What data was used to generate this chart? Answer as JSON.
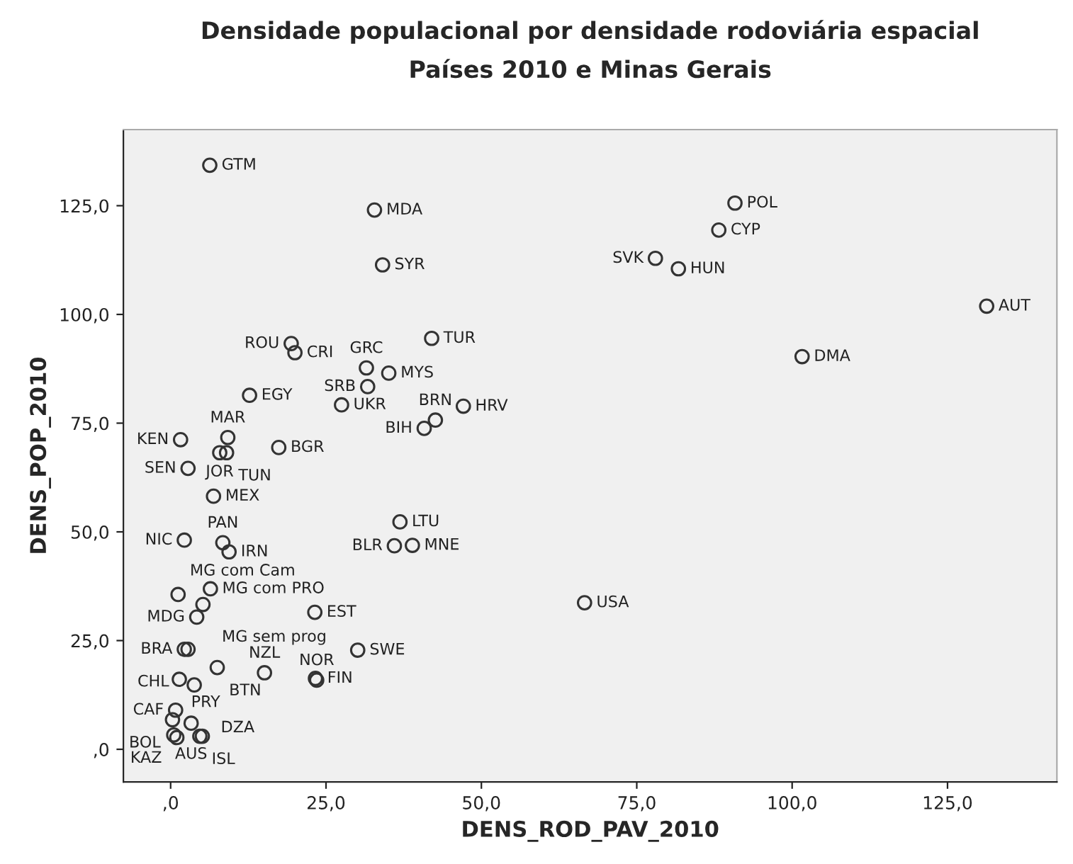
{
  "chart_data": {
    "type": "scatter",
    "title": "Densidade populacional por densidade rodoviária espacial",
    "subtitle": "Países 2010 e Minas Gerais",
    "xlabel": "DENS_ROD_PAV_2010",
    "ylabel": "DENS_POP_2010",
    "series": [
      {
        "color": "#333333",
        "x": [
          6.3,
          32.8,
          34.1,
          42.0,
          19.4,
          20.0,
          31.5,
          35.1,
          31.7,
          12.7,
          27.5,
          47.1,
          42.6,
          40.8,
          1.6,
          9.2,
          17.4,
          7.9,
          9.0,
          2.8,
          6.9,
          36.9,
          2.2,
          8.4,
          9.4,
          36.0,
          38.9,
          1.2,
          6.4,
          5.2,
          4.2,
          2.2,
          2.8,
          23.2,
          30.1,
          7.5,
          15.1,
          23.3,
          23.5,
          1.4,
          3.8,
          0.8,
          0.3,
          3.3,
          0.5,
          1.0,
          4.7,
          5.1,
          90.8,
          88.2,
          78.0,
          81.7,
          131.3,
          101.6,
          66.6
        ],
        "values": [
          134.3,
          124.0,
          111.4,
          94.5,
          93.3,
          91.2,
          87.7,
          86.5,
          83.4,
          81.4,
          79.2,
          78.9,
          75.7,
          73.8,
          71.2,
          71.7,
          69.4,
          68.2,
          68.2,
          64.6,
          58.2,
          52.3,
          48.1,
          47.5,
          45.4,
          46.8,
          46.9,
          35.6,
          36.9,
          33.3,
          30.4,
          23.0,
          23.0,
          31.5,
          22.8,
          18.8,
          17.6,
          16.3,
          15.9,
          16.1,
          14.8,
          9.0,
          6.8,
          6.0,
          3.3,
          2.7,
          3.0,
          3.0,
          125.6,
          119.4,
          112.9,
          110.5,
          101.9,
          90.3,
          33.7
        ]
      }
    ],
    "annotations": [
      {
        "text": "GTM",
        "x": 6.3,
        "y": 134.3
      },
      {
        "text": "MDA",
        "x": 32.8,
        "y": 124.0
      },
      {
        "text": "SYR",
        "x": 34.1,
        "y": 111.4
      },
      {
        "text": "TUR",
        "x": 42.0,
        "y": 94.5
      },
      {
        "text": "ROU",
        "x": 19.4,
        "y": 93.3
      },
      {
        "text": "CRI",
        "x": 20.0,
        "y": 91.2
      },
      {
        "text": "GRC",
        "x": 31.5,
        "y": 87.7
      },
      {
        "text": "MYS",
        "x": 35.1,
        "y": 86.5
      },
      {
        "text": "SRB",
        "x": 31.7,
        "y": 83.4
      },
      {
        "text": "EGY",
        "x": 12.7,
        "y": 81.4
      },
      {
        "text": "UKR",
        "x": 27.5,
        "y": 79.2
      },
      {
        "text": "HRV",
        "x": 47.1,
        "y": 78.9
      },
      {
        "text": "BRN",
        "x": 42.6,
        "y": 75.7
      },
      {
        "text": "BIH",
        "x": 40.8,
        "y": 73.8
      },
      {
        "text": "KEN",
        "x": 1.6,
        "y": 71.2
      },
      {
        "text": "MAR",
        "x": 9.2,
        "y": 71.7
      },
      {
        "text": "BGR",
        "x": 17.4,
        "y": 69.4
      },
      {
        "text": "JOR",
        "x": 7.9,
        "y": 68.2
      },
      {
        "text": "TUN",
        "x": 9.0,
        "y": 68.2
      },
      {
        "text": "SEN",
        "x": 2.8,
        "y": 64.6
      },
      {
        "text": "MEX",
        "x": 6.9,
        "y": 58.2
      },
      {
        "text": "LTU",
        "x": 36.9,
        "y": 52.3
      },
      {
        "text": "NIC",
        "x": 2.2,
        "y": 48.1
      },
      {
        "text": "PAN",
        "x": 8.4,
        "y": 47.5
      },
      {
        "text": "IRN",
        "x": 9.4,
        "y": 45.4
      },
      {
        "text": "BLR",
        "x": 36.0,
        "y": 46.8
      },
      {
        "text": "MNE",
        "x": 38.9,
        "y": 46.9
      },
      {
        "text": "MG com Cam",
        "x": 1.2,
        "y": 35.6
      },
      {
        "text": "MG com PRO",
        "x": 6.4,
        "y": 36.9
      },
      {
        "text": "MG sem prog",
        "x": 5.2,
        "y": 33.3
      },
      {
        "text": "MDG",
        "x": 4.2,
        "y": 30.4
      },
      {
        "text": "BRA",
        "x": 2.2,
        "y": 23.0
      },
      {
        "text": "CHL",
        "x": 2.8,
        "y": 23.0
      },
      {
        "text": "EST",
        "x": 23.2,
        "y": 31.5
      },
      {
        "text": "SWE",
        "x": 30.1,
        "y": 22.8
      },
      {
        "text": "BTN",
        "x": 7.5,
        "y": 18.8
      },
      {
        "text": "NZL",
        "x": 15.1,
        "y": 17.6
      },
      {
        "text": "FIN",
        "x": 23.3,
        "y": 16.3
      },
      {
        "text": "NOR",
        "x": 23.5,
        "y": 15.9
      },
      {
        "text": "PRY",
        "x": 1.4,
        "y": 16.1
      },
      {
        "text": "DZA",
        "x": 3.8,
        "y": 14.8
      },
      {
        "text": "CAF",
        "x": 0.8,
        "y": 9.0
      },
      {
        "text": "BOL",
        "x": 0.3,
        "y": 6.8
      },
      {
        "text": "AUS",
        "x": 3.3,
        "y": 6.0
      },
      {
        "text": "KAZ",
        "x": 0.5,
        "y": 3.3
      },
      {
        "text": "ISL",
        "x": 4.7,
        "y": 3.0
      },
      {
        "text": "POL",
        "x": 90.8,
        "y": 125.6
      },
      {
        "text": "CYP",
        "x": 88.2,
        "y": 119.4
      },
      {
        "text": "SVK",
        "x": 78.0,
        "y": 112.9
      },
      {
        "text": "HUN",
        "x": 81.7,
        "y": 110.5
      },
      {
        "text": "AUT",
        "x": 131.3,
        "y": 101.9
      },
      {
        "text": "DMA",
        "x": 101.6,
        "y": 90.3
      },
      {
        "text": "USA",
        "x": 66.6,
        "y": 33.7
      }
    ],
    "xlim": [
      -7.6,
      142.6
    ],
    "ylim": [
      -7.5,
      142.5
    ],
    "xticks": [
      {
        "value": 0,
        "label": ",0"
      },
      {
        "value": 25,
        "label": "25,0"
      },
      {
        "value": 50,
        "label": "50,0"
      },
      {
        "value": 75,
        "label": "75,0"
      },
      {
        "value": 100,
        "label": "100,0"
      },
      {
        "value": 125,
        "label": "125,0"
      }
    ],
    "yticks": [
      {
        "value": 0,
        "label": ",0"
      },
      {
        "value": 25,
        "label": "25,0"
      },
      {
        "value": 50,
        "label": "50,0"
      },
      {
        "value": 75,
        "label": "75,0"
      },
      {
        "value": 100,
        "label": "100,0"
      },
      {
        "value": 125,
        "label": "125,0"
      }
    ],
    "marker": "circle",
    "grid": false,
    "legend": false
  }
}
